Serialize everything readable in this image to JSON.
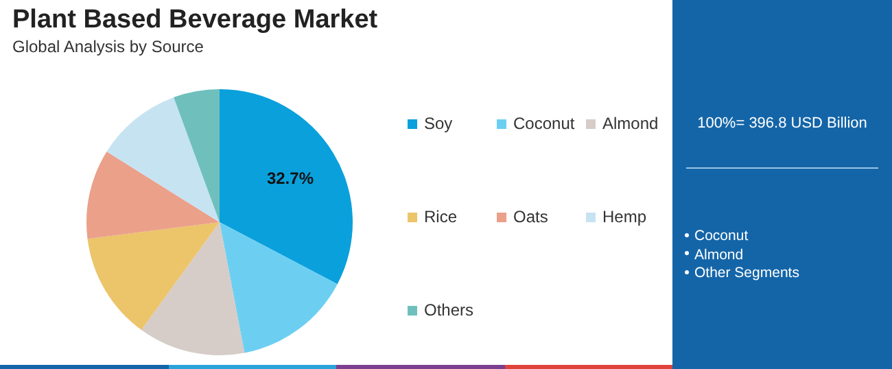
{
  "chart_data": {
    "type": "pie",
    "title": "Plant Based Beverage Market",
    "subtitle": "Global Analysis by Source",
    "categories": [
      "Soy",
      "Coconut",
      "Almond",
      "Rice",
      "Oats",
      "Hemp",
      "Others"
    ],
    "values": [
      32.7,
      14.3,
      13,
      13,
      10.9,
      10.5,
      5.6
    ],
    "colors": [
      "#0aa0dc",
      "#6ccff2",
      "#d6ccc8",
      "#ecc46a",
      "#eba08a",
      "#c6e3f2",
      "#6fc0bd"
    ],
    "value_labels": [
      "32.7%",
      null,
      null,
      null,
      null,
      null,
      null
    ],
    "legend": "right",
    "annotations": [
      "100%= 396.8 USD Billion",
      "Coconut",
      "Almond",
      "Other Segments"
    ]
  }
}
